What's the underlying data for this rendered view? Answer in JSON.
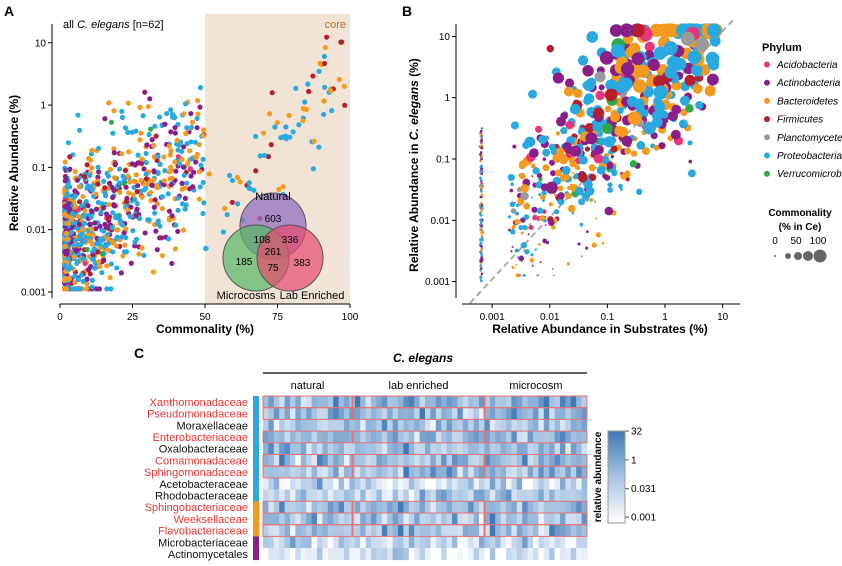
{
  "panel_labels": {
    "a": "A",
    "b": "B",
    "c": "C"
  },
  "chart_data": [
    {
      "panel": "A",
      "type": "scatter",
      "subtitle_prefix": "all ",
      "subtitle_species": "C. elegans",
      "subtitle_suffix": " [n=62]",
      "core_label": "core",
      "core_threshold": 50,
      "xlabel": "Commonality (%)",
      "ylabel": "Relative Abundance (%)",
      "xlim": [
        0,
        100
      ],
      "ylim": [
        0.001,
        20
      ],
      "yscale": "log",
      "xticks": [
        "0",
        "25",
        "50",
        "75",
        "100"
      ],
      "xtick_values": [
        0,
        25,
        50,
        75,
        100
      ],
      "yticks": [
        "0.001",
        "0.01",
        "0.1",
        "1",
        "10"
      ],
      "ytick_values": [
        0.001,
        0.01,
        0.1,
        1,
        10
      ],
      "venn": {
        "sets": [
          "Natural",
          "Microcosms",
          "Lab Enriched"
        ],
        "colors": [
          "#9370c0",
          "#55b865",
          "#e64a6f"
        ],
        "only_natural": "603",
        "only_microcosms": "185",
        "only_lab_enriched": "383",
        "natural_microcosms": "108",
        "natural_lab": "336",
        "microcosms_lab": "75",
        "all_three": "261"
      }
    },
    {
      "panel": "B",
      "type": "scatter",
      "xlabel": "Relative Abundance in Substrates (%)",
      "ylabel_prefix": "Relative Abundance in ",
      "ylabel_species": "C. elegans",
      "ylabel_suffix": " (%)",
      "xscale": "log",
      "yscale": "log",
      "xlim": [
        0.0003,
        20
      ],
      "ylim": [
        0.0005,
        20
      ],
      "xticks": [
        "0.001",
        "0.01",
        "0.1",
        "1",
        "10"
      ],
      "xtick_values": [
        0.001,
        0.01,
        0.1,
        1,
        10
      ],
      "yticks": [
        "0.001",
        "0.01",
        "0.1",
        "1",
        "10"
      ],
      "ytick_values": [
        0.001,
        0.01,
        0.1,
        1,
        10
      ],
      "reference_line": "y = x"
    },
    {
      "panel": "C",
      "type": "heatmap",
      "title": "C. elegans",
      "groups": [
        "natural",
        "lab enriched",
        "microcosm"
      ],
      "rows": [
        {
          "name": "Xanthomonadaceae",
          "highlight": true,
          "phylum": "Proteobacteria"
        },
        {
          "name": "Pseudomonadaceae",
          "highlight": true,
          "phylum": "Proteobacteria"
        },
        {
          "name": "Moraxellaceae",
          "highlight": false,
          "phylum": "Proteobacteria"
        },
        {
          "name": "Enterobacteriaceae",
          "highlight": true,
          "phylum": "Proteobacteria"
        },
        {
          "name": "Oxalobacteraceae",
          "highlight": false,
          "phylum": "Proteobacteria"
        },
        {
          "name": "Comamonadaceae",
          "highlight": true,
          "phylum": "Proteobacteria"
        },
        {
          "name": "Sphingomonadaceae",
          "highlight": true,
          "phylum": "Proteobacteria"
        },
        {
          "name": "Acetobacteraceae",
          "highlight": false,
          "phylum": "Proteobacteria"
        },
        {
          "name": "Rhodobacteraceae",
          "highlight": false,
          "phylum": "Proteobacteria"
        },
        {
          "name": "Sphingobacteriaceae",
          "highlight": true,
          "phylum": "Bacteroidetes"
        },
        {
          "name": "Weeksellaceae",
          "highlight": true,
          "phylum": "Bacteroidetes"
        },
        {
          "name": "Flavobacteriaceae",
          "highlight": true,
          "phylum": "Bacteroidetes"
        },
        {
          "name": "Microbacteriaceae",
          "highlight": false,
          "phylum": "Actinobacteria"
        },
        {
          "name": "Actinomycetales",
          "highlight": false,
          "phylum": "Actinobacteria"
        }
      ],
      "legend_title": "relative abundance",
      "legend_ticks": [
        "32",
        "1",
        "0.031",
        "0.001"
      ],
      "legend_tick_values": [
        32,
        1,
        0.031,
        0.001
      ]
    }
  ],
  "legend": {
    "title": "Phylum",
    "phyla": [
      {
        "name": "Acidobacteria",
        "color": "#e8347a"
      },
      {
        "name": "Actinobacteria",
        "color": "#8a1f8a"
      },
      {
        "name": "Bacteroidetes",
        "color": "#f39a1f"
      },
      {
        "name": "Firmicutes",
        "color": "#b51f2e"
      },
      {
        "name": "Planctomycetes",
        "color": "#9a9a9a"
      },
      {
        "name": "Proteobacteria",
        "color": "#2aa9e0"
      },
      {
        "name": "Verrucomicrobia",
        "color": "#2ea84a"
      }
    ],
    "commonality_title_1": "Commonality",
    "commonality_title_2": "(% in Ce)",
    "commonality_ticks": [
      "0",
      "50",
      "100"
    ],
    "commonality_values": [
      0,
      50,
      100
    ]
  }
}
